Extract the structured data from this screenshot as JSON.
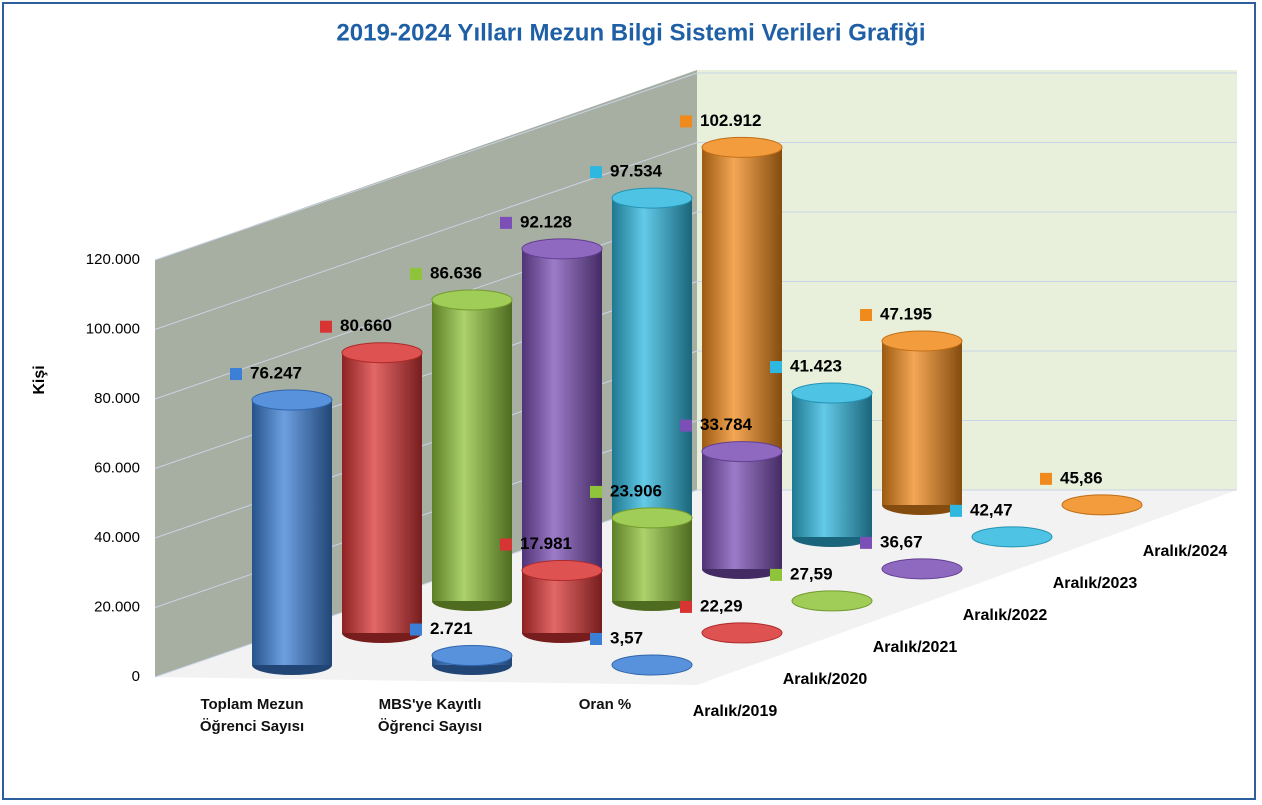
{
  "chart_data": {
    "type": "bar3d",
    "title": "2019-2024 Yılları Mezun Bilgi Sistemi Verileri Grafiği",
    "y_label": "Kişi",
    "categories": [
      "Toplam Mezun Öğrenci Sayısı",
      "MBS'ye Kayıtlı Öğrenci Sayısı",
      "Oran %"
    ],
    "series": [
      {
        "name": "Aralık/2019",
        "color": "#3c7fd6",
        "values": [
          76247,
          2721,
          3.57
        ],
        "value_labels": [
          "76.247",
          "2.721",
          "3,57"
        ]
      },
      {
        "name": "Aralık/2020",
        "color": "#d93434",
        "values": [
          80660,
          17981,
          22.29
        ],
        "value_labels": [
          "80.660",
          "17.981",
          "22,29"
        ]
      },
      {
        "name": "Aralık/2021",
        "color": "#8fc33a",
        "values": [
          86636,
          23906,
          27.59
        ],
        "value_labels": [
          "86.636",
          "23.906",
          "27,59"
        ]
      },
      {
        "name": "Aralık/2022",
        "color": "#7b4fb5",
        "values": [
          92128,
          33784,
          36.67
        ],
        "value_labels": [
          "92.128",
          "33.784",
          "36,67"
        ]
      },
      {
        "name": "Aralık/2023",
        "color": "#2fb8df",
        "values": [
          97534,
          41423,
          42.47
        ],
        "value_labels": [
          "97.534",
          "41.423",
          "42,47"
        ]
      },
      {
        "name": "Aralık/2024",
        "color": "#f08a1c",
        "values": [
          102912,
          47195,
          45.86
        ],
        "value_labels": [
          "102.912",
          "47.195",
          "45,86"
        ]
      }
    ],
    "ylim": [
      0,
      120000
    ],
    "yticks": [
      0,
      {
        "value": 20000,
        "label": "20.000"
      },
      {
        "value": 40000,
        "label": "40.000"
      },
      {
        "value": 60000,
        "label": "60.000"
      },
      {
        "value": 80000,
        "label": "80.000"
      },
      {
        "value": 100000,
        "label": "100.000"
      },
      {
        "value": 120000,
        "label": "120.000"
      }
    ],
    "grid": true
  }
}
